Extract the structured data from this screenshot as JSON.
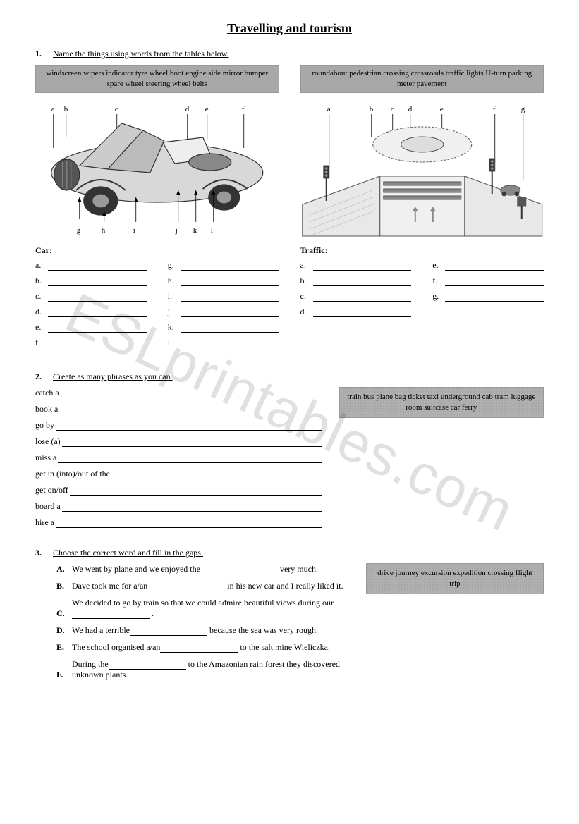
{
  "title": "Travelling and tourism",
  "watermark": "ESLprintables.com",
  "task1": {
    "num": "1.",
    "instr": "Name the things using words from the tables below.",
    "car_words": "windscreen   wipers   indicator   tyre   wheel   boot   engine   side mirror   bumper   spare wheel   steering wheel   belts",
    "traffic_words": "roundabout   pedestrian crossing   crossroads   traffic lights   U-turn   parking meter   pavement",
    "car_head": "Car:",
    "traffic_head": "Traffic:",
    "car_labels_left": [
      "a.",
      "b.",
      "c.",
      "d.",
      "e.",
      "f."
    ],
    "car_labels_right": [
      "g.",
      "h.",
      "i.",
      "j.",
      "k.",
      "l."
    ],
    "traffic_labels_left": [
      "a.",
      "b.",
      "c.",
      "d."
    ],
    "traffic_labels_right": [
      "e.",
      "f.",
      "g."
    ],
    "car_top_letters": [
      "a",
      "b",
      "c",
      "d",
      "e",
      "f"
    ],
    "car_bottom_letters": [
      "g",
      "h",
      "i",
      "j",
      "k",
      "l"
    ],
    "traffic_top_letters": [
      "a",
      "b",
      "c",
      "d",
      "e",
      "f",
      "g"
    ]
  },
  "task2": {
    "num": "2.",
    "instr": "Create as many phrases as you can.",
    "phrases": [
      "catch a",
      "book a",
      "go by",
      "lose (a)",
      "miss a",
      "get in (into)/out of the",
      "get on/off",
      "board a",
      "hire a"
    ],
    "words": "train   bus   plane   bag   ticket   taxi   underground   cab   tram   luggage   room   suitcase   car   ferry"
  },
  "task3": {
    "num": "3.",
    "instr": "Choose the correct word and fill in the gaps.",
    "words": "drive   journey  excursion   expedition   crossing   flight   trip",
    "items": [
      {
        "letter": "A.",
        "pre": "We went by plane and we enjoyed the",
        "post": " very much."
      },
      {
        "letter": "B.",
        "pre": "Dave took me for a/an",
        "post": " in his new car and I really liked it."
      },
      {
        "letter": "C.",
        "pre": "We decided to go by train so that we could admire beautiful views during our",
        "post": " ."
      },
      {
        "letter": "D.",
        "pre": "We had a terrible",
        "post": " because the sea was very rough."
      },
      {
        "letter": "E.",
        "pre": "The school organised a/an",
        "post": " to the salt mine Wieliczka."
      },
      {
        "letter": "F.",
        "pre": "During the",
        "post": " to the Amazonian rain forest they discovered unknown plants."
      }
    ]
  },
  "colors": {
    "bg": "#ffffff",
    "text": "#000000",
    "box": "#a8a8a8",
    "watermark": "rgba(0,0,0,0.12)"
  }
}
